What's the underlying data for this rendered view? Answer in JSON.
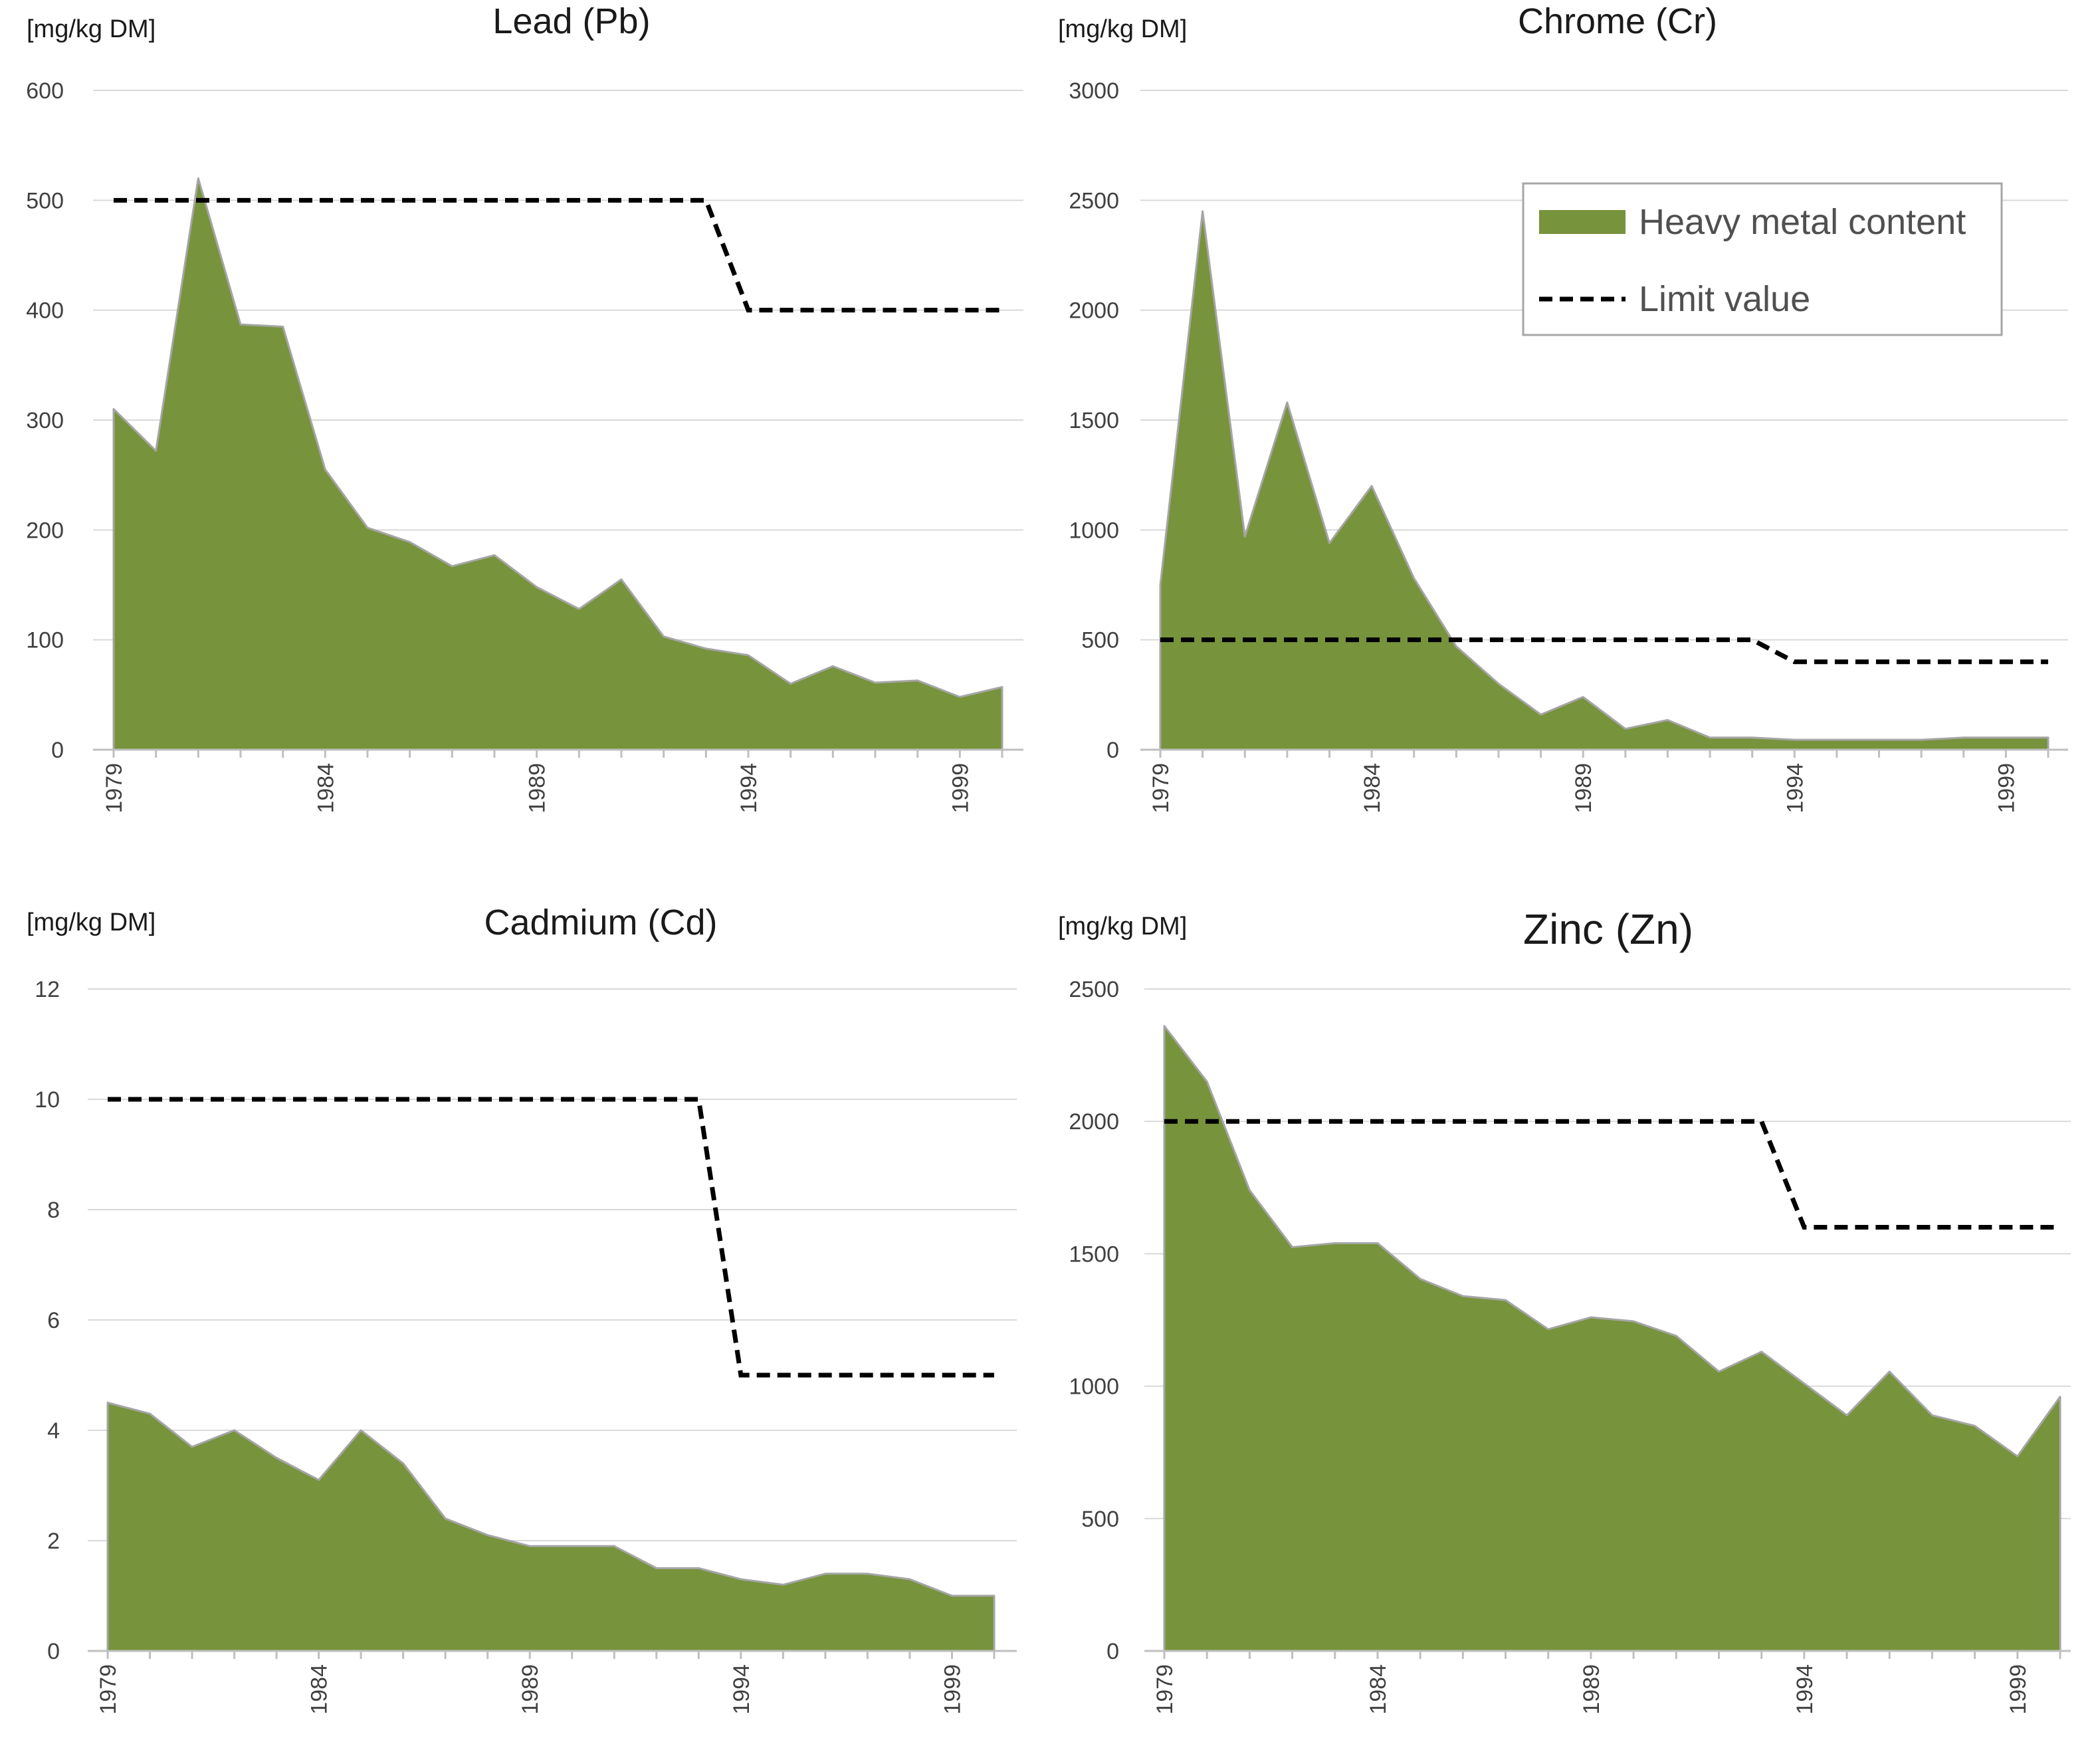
{
  "chart_data": [
    {
      "type": "area",
      "title": "Lead (Pb)",
      "ylabel": "[mg/kg DM]",
      "ylim": [
        0,
        600
      ],
      "yticks": [
        0,
        100,
        200,
        300,
        400,
        500,
        600
      ],
      "x": [
        1979,
        1980,
        1981,
        1982,
        1983,
        1984,
        1985,
        1986,
        1987,
        1988,
        1989,
        1990,
        1991,
        1992,
        1993,
        1994,
        1995,
        1996,
        1997,
        1998,
        1999,
        2000
      ],
      "xtick_labels": [
        "1979",
        "1984",
        "1989",
        "1994",
        "1999"
      ],
      "series": [
        {
          "name": "Heavy metal content",
          "kind": "area",
          "color": "#77933c",
          "values": [
            310,
            272,
            520,
            387,
            385,
            255,
            202,
            189,
            167,
            177,
            148,
            128,
            155,
            103,
            92,
            86,
            60,
            76,
            61,
            63,
            48,
            57
          ]
        },
        {
          "name": "Limit value",
          "kind": "dashed-line",
          "color": "#000000",
          "values": [
            500,
            500,
            500,
            500,
            500,
            500,
            500,
            500,
            500,
            500,
            500,
            500,
            500,
            500,
            500,
            400,
            400,
            400,
            400,
            400,
            400,
            400
          ]
        }
      ]
    },
    {
      "type": "area",
      "title": "Chrome (Cr)",
      "ylabel": "[mg/kg DM]",
      "ylim": [
        0,
        3000
      ],
      "yticks": [
        0,
        500,
        1000,
        1500,
        2000,
        2500,
        3000
      ],
      "x": [
        1979,
        1980,
        1981,
        1982,
        1983,
        1984,
        1985,
        1986,
        1987,
        1988,
        1989,
        1990,
        1991,
        1992,
        1993,
        1994,
        1995,
        1996,
        1997,
        1998,
        1999,
        2000
      ],
      "xtick_labels": [
        "1979",
        "1984",
        "1989",
        "1994",
        "1999"
      ],
      "series": [
        {
          "name": "Heavy metal content",
          "kind": "area",
          "color": "#77933c",
          "values": [
            750,
            2450,
            970,
            1580,
            940,
            1200,
            780,
            470,
            300,
            160,
            240,
            95,
            135,
            55,
            55,
            45,
            45,
            45,
            45,
            55,
            55,
            55
          ]
        },
        {
          "name": "Limit value",
          "kind": "dashed-line",
          "color": "#000000",
          "values": [
            500,
            500,
            500,
            500,
            500,
            500,
            500,
            500,
            500,
            500,
            500,
            500,
            500,
            500,
            500,
            400,
            400,
            400,
            400,
            400,
            400,
            400
          ]
        }
      ],
      "legend": {
        "placement": "top-right",
        "entries": [
          "Heavy metal content",
          "Limit value"
        ]
      }
    },
    {
      "type": "area",
      "title": "Cadmium (Cd)",
      "ylabel": "[mg/kg DM]",
      "ylim": [
        0,
        12
      ],
      "yticks": [
        0,
        2,
        4,
        6,
        8,
        10,
        12
      ],
      "x": [
        1979,
        1980,
        1981,
        1982,
        1983,
        1984,
        1985,
        1986,
        1987,
        1988,
        1989,
        1990,
        1991,
        1992,
        1993,
        1994,
        1995,
        1996,
        1997,
        1998,
        1999,
        2000
      ],
      "xtick_labels": [
        "1979",
        "1984",
        "1989",
        "1994",
        "1999"
      ],
      "series": [
        {
          "name": "Heavy metal content",
          "kind": "area",
          "color": "#77933c",
          "values": [
            4.5,
            4.3,
            3.7,
            4.0,
            3.5,
            3.1,
            4.0,
            3.4,
            2.4,
            2.1,
            1.9,
            1.9,
            1.9,
            1.5,
            1.5,
            1.3,
            1.2,
            1.4,
            1.4,
            1.3,
            1.0,
            1.0
          ]
        },
        {
          "name": "Limit value",
          "kind": "dashed-line",
          "color": "#000000",
          "values": [
            10,
            10,
            10,
            10,
            10,
            10,
            10,
            10,
            10,
            10,
            10,
            10,
            10,
            10,
            10,
            5,
            5,
            5,
            5,
            5,
            5,
            5
          ]
        }
      ]
    },
    {
      "type": "area",
      "title": "Zinc (Zn)",
      "ylabel": "[mg/kg DM]",
      "ylim": [
        0,
        2500
      ],
      "yticks": [
        0,
        500,
        1000,
        1500,
        2000,
        2500
      ],
      "x": [
        1979,
        1980,
        1981,
        1982,
        1983,
        1984,
        1985,
        1986,
        1987,
        1988,
        1989,
        1990,
        1991,
        1992,
        1993,
        1994,
        1995,
        1996,
        1997,
        1998,
        1999,
        2000
      ],
      "xtick_labels": [
        "1979",
        "1984",
        "1989",
        "1994",
        "1999"
      ],
      "series": [
        {
          "name": "Heavy metal content",
          "kind": "area",
          "color": "#77933c",
          "values": [
            2360,
            2150,
            1740,
            1525,
            1540,
            1540,
            1405,
            1340,
            1325,
            1215,
            1260,
            1245,
            1190,
            1055,
            1130,
            1010,
            890,
            1055,
            890,
            850,
            735,
            960
          ]
        },
        {
          "name": "Limit value",
          "kind": "dashed-line",
          "color": "#000000",
          "values": [
            2000,
            2000,
            2000,
            2000,
            2000,
            2000,
            2000,
            2000,
            2000,
            2000,
            2000,
            2000,
            2000,
            2000,
            2000,
            1600,
            1600,
            1600,
            1600,
            1600,
            1600,
            1600
          ]
        }
      ]
    }
  ]
}
